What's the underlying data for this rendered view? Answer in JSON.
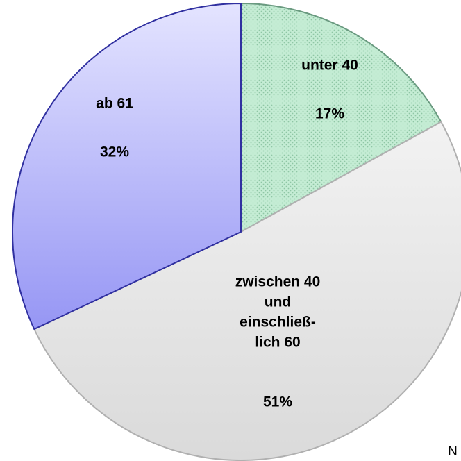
{
  "chart_data": {
    "type": "pie",
    "categories": [
      "unter 40",
      "zwischen 40\nund\neinschließ-\nlich 60",
      "ab 61"
    ],
    "values": [
      17,
      51,
      32
    ],
    "value_labels": [
      "17%",
      "51%",
      "32%"
    ],
    "colors": [
      "#c4ecd4",
      "#e4e4e4",
      "#b4b4f8"
    ],
    "annotation": "N"
  }
}
